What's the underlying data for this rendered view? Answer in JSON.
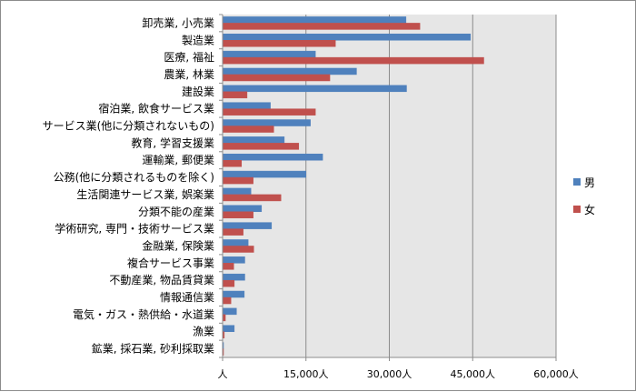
{
  "chart_data": {
    "type": "bar",
    "orientation": "horizontal",
    "categories": [
      "卸売業, 小売業",
      "製造業",
      "医療, 福祉",
      "農業, 林業",
      "建設業",
      "宿泊業, 飲食サービス業",
      "サービス業(他に分類されないもの)",
      "教育, 学習支援業",
      "運輸業, 郵便業",
      "公務(他に分類されるものを除く)",
      "生活関連サービス業, 娯楽業",
      "分類不能の産業",
      "学術研究, 専門・技術サービス業",
      "金融業, 保険業",
      "複合サービス事業",
      "不動産業, 物品賃貸業",
      "情報通信業",
      "電気・ガス・熱供給・水道業",
      "漁業",
      "鉱業, 採石業, 砂利採取業"
    ],
    "series": [
      {
        "name": "男",
        "color": "#4f81bd",
        "values": [
          33000,
          44600,
          16700,
          24100,
          33100,
          8600,
          15800,
          11100,
          18000,
          15000,
          5100,
          7000,
          8800,
          4600,
          4000,
          4000,
          3900,
          2500,
          2100,
          150
        ]
      },
      {
        "name": "女",
        "color": "#c0504d",
        "values": [
          35500,
          20300,
          47000,
          19300,
          4400,
          16700,
          9200,
          13700,
          3400,
          5500,
          10500,
          5500,
          3700,
          5600,
          2000,
          2100,
          1500,
          500,
          300,
          50
        ]
      }
    ],
    "x_ticks": [
      {
        "value": 0,
        "label": "人"
      },
      {
        "value": 15000,
        "label": "15,000人"
      },
      {
        "value": 30000,
        "label": "30,000人"
      },
      {
        "value": 45000,
        "label": "45,000人"
      },
      {
        "value": 60000,
        "label": "60,000人"
      }
    ],
    "xlim": [
      0,
      60000
    ],
    "grid": true,
    "legend_position": "right",
    "plot_background": "#e6e6e6",
    "gridline_color": "#8c8c8c"
  }
}
